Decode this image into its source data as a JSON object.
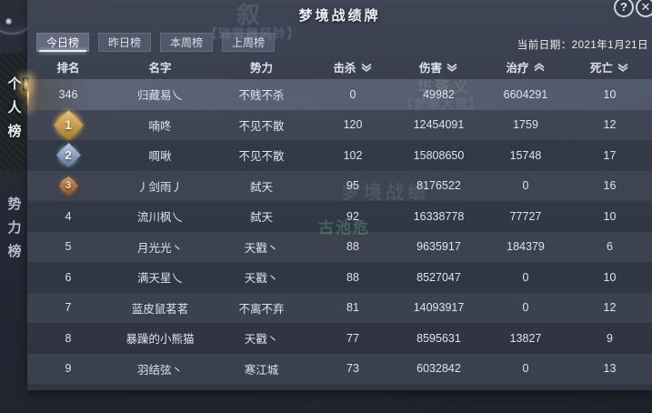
{
  "window": {
    "title": "梦境战绩牌",
    "help_label": "?",
    "close_label": "✕",
    "date_label": "当前日期：2021年1月21日"
  },
  "tabs": [
    {
      "label": "今日榜",
      "selected": true
    },
    {
      "label": "昨日榜",
      "selected": false
    },
    {
      "label": "本周榜",
      "selected": false
    },
    {
      "label": "上周榜",
      "selected": false
    }
  ],
  "sidebar": {
    "items": [
      {
        "label": "个人榜",
        "selected": true
      },
      {
        "label": "势力榜",
        "selected": false
      }
    ]
  },
  "table": {
    "columns": [
      {
        "label": "排名",
        "sort": null
      },
      {
        "label": "名字",
        "sort": null
      },
      {
        "label": "势力",
        "sort": null
      },
      {
        "label": "击杀",
        "sort": "desc"
      },
      {
        "label": "伤害",
        "sort": "desc"
      },
      {
        "label": "治疗",
        "sort": "asc"
      },
      {
        "label": "死亡",
        "sort": "desc"
      }
    ],
    "rows": [
      {
        "rank": "346",
        "medal": null,
        "highlight": true,
        "name": "归藏易乀",
        "faction": "不贱不杀",
        "kills": "0",
        "damage": "49982",
        "healing": "6604291",
        "deaths": "10"
      },
      {
        "rank": "1",
        "medal": "gold",
        "highlight": false,
        "name": "喃咚",
        "faction": "不见不散",
        "kills": "120",
        "damage": "12454091",
        "healing": "1759",
        "deaths": "12"
      },
      {
        "rank": "2",
        "medal": "silver",
        "highlight": false,
        "name": "啁啾",
        "faction": "不见不散",
        "kills": "102",
        "damage": "15808650",
        "healing": "15748",
        "deaths": "17"
      },
      {
        "rank": "3",
        "medal": "bronze",
        "highlight": false,
        "name": "丿剑雨丿",
        "faction": "弑天",
        "kills": "95",
        "damage": "8176522",
        "healing": "0",
        "deaths": "16"
      },
      {
        "rank": "4",
        "medal": null,
        "highlight": false,
        "name": "流川枫乀",
        "faction": "弑天",
        "kills": "92",
        "damage": "16338778",
        "healing": "77727",
        "deaths": "10"
      },
      {
        "rank": "5",
        "medal": null,
        "highlight": false,
        "name": "月光光丶",
        "faction": "天戳丶",
        "kills": "88",
        "damage": "9635917",
        "healing": "184379",
        "deaths": "6"
      },
      {
        "rank": "6",
        "medal": null,
        "highlight": false,
        "name": "满天星乀",
        "faction": "天戳丶",
        "kills": "88",
        "damage": "8527047",
        "healing": "0",
        "deaths": "10"
      },
      {
        "rank": "7",
        "medal": null,
        "highlight": false,
        "name": "蓝皮鼠茗茗",
        "faction": "不离不弃",
        "kills": "81",
        "damage": "14093917",
        "healing": "0",
        "deaths": "12"
      },
      {
        "rank": "8",
        "medal": null,
        "highlight": false,
        "name": "暴躁的小熊猫",
        "faction": "天戳丶",
        "kills": "77",
        "damage": "8595631",
        "healing": "13827",
        "deaths": "9"
      },
      {
        "rank": "9",
        "medal": null,
        "highlight": false,
        "name": "羽结弦丶",
        "faction": "寒江城",
        "kills": "73",
        "damage": "6032842",
        "healing": "0",
        "deaths": "13"
      }
    ]
  },
  "ghosts": [
    {
      "text": "叙"
    },
    {
      "text": "【瑞雪舞风铃】"
    },
    {
      "text": "华胥义"
    },
    {
      "text": "【梦醒大荒】"
    },
    {
      "text": "梦境战绩"
    },
    {
      "text": "古池危"
    }
  ],
  "colors": {
    "accent_gold": "#e8c478",
    "panel_bg": "#3a4050",
    "highlight_row": "#565d6e",
    "medal_silver": "#8ca6c8",
    "medal_bronze": "#bf7d46"
  }
}
